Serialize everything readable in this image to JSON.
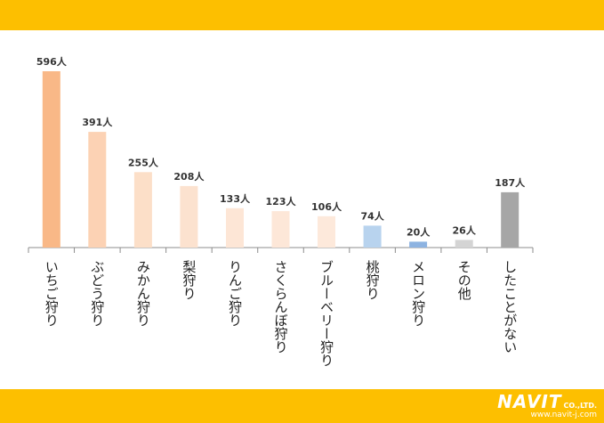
{
  "chart_data": {
    "type": "bar",
    "title": "",
    "xlabel": "",
    "ylabel": "",
    "categories": [
      "いちご狩り",
      "ぶどう狩り",
      "みかん狩り",
      "梨狩り",
      "りんご狩り",
      "さくらんぼ狩り",
      "ブルーベリー狩り",
      "桃狩り",
      "メロン狩り",
      "その他",
      "したことがない"
    ],
    "values": [
      596,
      391,
      255,
      208,
      133,
      123,
      106,
      74,
      20,
      26,
      187
    ],
    "data_labels": [
      "596人",
      "391人",
      "255人",
      "208人",
      "133人",
      "123人",
      "106人",
      "74人",
      "20人",
      "26人",
      "187人"
    ],
    "ylim": [
      0,
      600
    ],
    "grid": false,
    "colors": [
      "#F9B887",
      "#FCD2B4",
      "#FCDFC8",
      "#FCE2CF",
      "#FDE6D6",
      "#FDE7D8",
      "#FDE9DB",
      "#B8D3EE",
      "#8DB3E1",
      "#D4D4D4",
      "#A6A6A6"
    ]
  },
  "logo": {
    "name": "NAVIT",
    "suffix": "CO.,LTD.",
    "url": "www.navit-j.com"
  }
}
